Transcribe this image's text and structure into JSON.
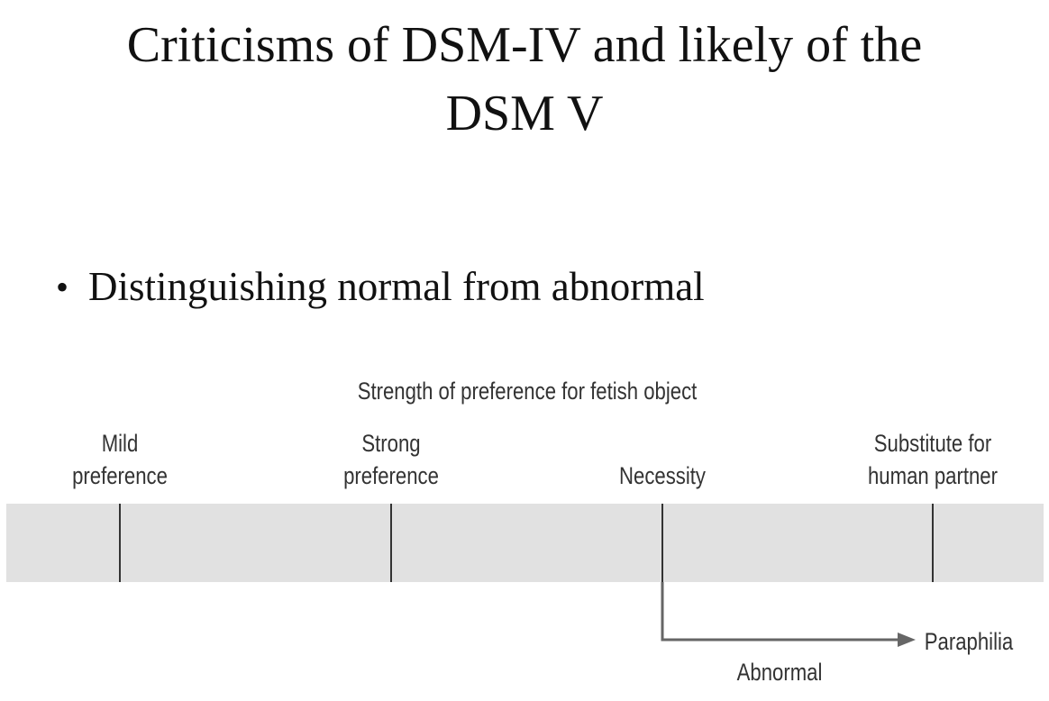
{
  "slide": {
    "title_line1": "Criticisms of DSM-IV and likely of the",
    "title_line2": "DSM V",
    "bullet": "Distinguishing normal from abnormal"
  },
  "diagram": {
    "heading": "Strength of preference for fetish object",
    "levels": [
      {
        "line1": "Mild",
        "line2": "preference"
      },
      {
        "line1": "Strong",
        "line2": "preference"
      },
      {
        "line1": "",
        "line2": "Necessity"
      },
      {
        "line1": "Substitute for",
        "line2": "human partner"
      }
    ],
    "arrow_target": "Paraphilia",
    "arrow_label": "Abnormal",
    "band_color": "#e1e1e1",
    "arrow_color": "#666666"
  }
}
